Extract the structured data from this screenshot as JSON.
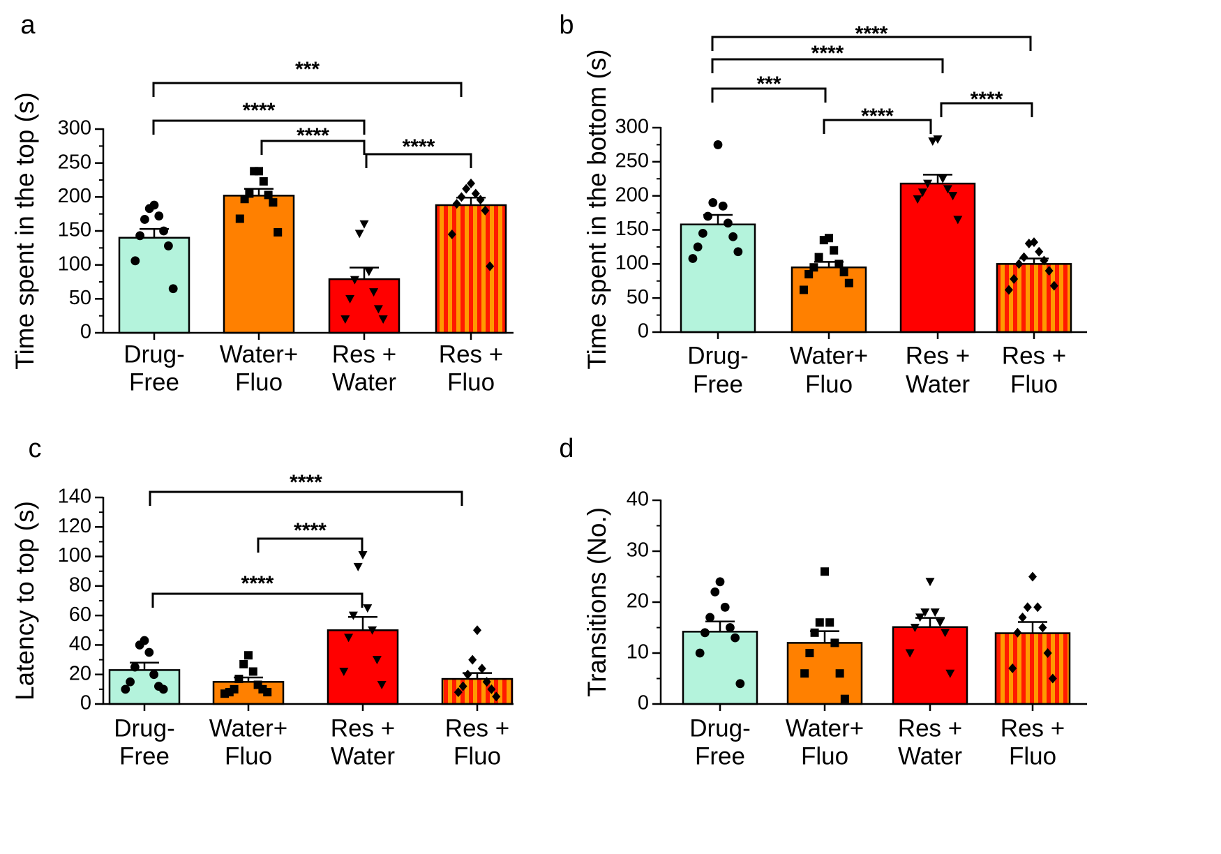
{
  "chart_data": [
    {
      "panel": "a",
      "type": "bar",
      "ylabel": "Time spent in the top (s)",
      "ylim": [
        0,
        300
      ],
      "yticks": [
        0,
        50,
        100,
        150,
        200,
        250,
        300
      ],
      "categories": [
        "Drug-\nFree",
        "Water+\nFluo",
        "Res +\nWater",
        "Res +\nFluo"
      ],
      "values": [
        140,
        202,
        79,
        188
      ],
      "errors": [
        13,
        10,
        17,
        11
      ],
      "points": [
        [
          188,
          183,
          172,
          167,
          150,
          143,
          128,
          106,
          65
        ],
        [
          238,
          238,
          223,
          205,
          203,
          197,
          192,
          168,
          148
        ],
        [
          160,
          146,
          90,
          78,
          60,
          50,
          35,
          20,
          20
        ],
        [
          220,
          212,
          205,
          200,
          196,
          190,
          180,
          145,
          98
        ]
      ],
      "significance": [
        {
          "from": 0,
          "to": 3,
          "label": "***"
        },
        {
          "from": 0,
          "to": 2,
          "label": "****"
        },
        {
          "from": 1,
          "to": 2,
          "label": "****"
        },
        {
          "from": 2,
          "to": 3,
          "label": "****"
        }
      ]
    },
    {
      "panel": "b",
      "type": "bar",
      "ylabel": "Time spent in the bottom (s)",
      "ylim": [
        0,
        300
      ],
      "yticks": [
        0,
        50,
        100,
        150,
        200,
        250,
        300
      ],
      "categories": [
        "Drug-\nFree",
        "Water+\nFluo",
        "Res +\nWater",
        "Res +\nFluo"
      ],
      "values": [
        158,
        95,
        218,
        100
      ],
      "errors": [
        14,
        8,
        13,
        8
      ],
      "points": [
        [
          275,
          190,
          185,
          170,
          160,
          145,
          140,
          125,
          118,
          108
        ],
        [
          138,
          135,
          120,
          110,
          100,
          95,
          88,
          85,
          72,
          62
        ],
        [
          283,
          280,
          225,
          218,
          210,
          205,
          200,
          195,
          165
        ],
        [
          132,
          130,
          118,
          110,
          105,
          100,
          90,
          78,
          68,
          62
        ]
      ],
      "significance": [
        {
          "from": 0,
          "to": 3,
          "label": "****"
        },
        {
          "from": 0,
          "to": 2,
          "label": "****"
        },
        {
          "from": 0,
          "to": 1,
          "label": "***"
        },
        {
          "from": 1,
          "to": 2,
          "label": "****"
        },
        {
          "from": 2,
          "to": 3,
          "label": "****"
        }
      ]
    },
    {
      "panel": "c",
      "type": "bar",
      "ylabel": "Latency to top (s)",
      "ylim": [
        0,
        140
      ],
      "yticks": [
        0,
        20,
        40,
        60,
        80,
        100,
        120,
        140
      ],
      "categories": [
        "Drug-\nFree",
        "Water+\nFluo",
        "Res +\nWater",
        "Res +\nFluo"
      ],
      "values": [
        23,
        15,
        50,
        17
      ],
      "errors": [
        5,
        3,
        9,
        4
      ],
      "points": [
        [
          43,
          40,
          35,
          25,
          20,
          15,
          12,
          10,
          10
        ],
        [
          33,
          27,
          22,
          17,
          13,
          10,
          10,
          8,
          8,
          7
        ],
        [
          101,
          93,
          65,
          60,
          50,
          45,
          30,
          22,
          13
        ],
        [
          50,
          30,
          24,
          20,
          15,
          12,
          10,
          8,
          5
        ]
      ],
      "significance": [
        {
          "from": 0,
          "to": 3,
          "label": "****"
        },
        {
          "from": 1,
          "to": 2,
          "label": "****"
        },
        {
          "from": 0,
          "to": 2,
          "label": "****"
        }
      ]
    },
    {
      "panel": "d",
      "type": "bar",
      "ylabel": "Transitions (No.)",
      "ylim": [
        0,
        40
      ],
      "yticks": [
        0,
        10,
        20,
        30,
        40
      ],
      "categories": [
        "Drug-\nFree",
        "Water+\nFluo",
        "Res +\nWater",
        "Res +\nFluo"
      ],
      "values": [
        14.2,
        12.0,
        15.1,
        13.9
      ],
      "errors": [
        2.0,
        2.3,
        1.8,
        2.2
      ],
      "points": [
        [
          24,
          22,
          19,
          17,
          15,
          14,
          13,
          10,
          4
        ],
        [
          26,
          16,
          16,
          14,
          12,
          10,
          6,
          6,
          1
        ],
        [
          24,
          18,
          18,
          17,
          16,
          15,
          14,
          10,
          6
        ],
        [
          25,
          19,
          19,
          17,
          15,
          14,
          10,
          7,
          5
        ]
      ],
      "significance": []
    }
  ],
  "panel_labels": [
    "a",
    "b",
    "c",
    "d"
  ],
  "colors": {
    "drug_free": "#b4f3dc",
    "water_fluo": "#ff8000",
    "res_water": "#ff0000",
    "res_fluo_stripe_a": "#ff1a00",
    "res_fluo_stripe_b": "#ff9a00",
    "ink": "#000000"
  },
  "markers": [
    "circle",
    "square",
    "triangle-down",
    "diamond"
  ]
}
